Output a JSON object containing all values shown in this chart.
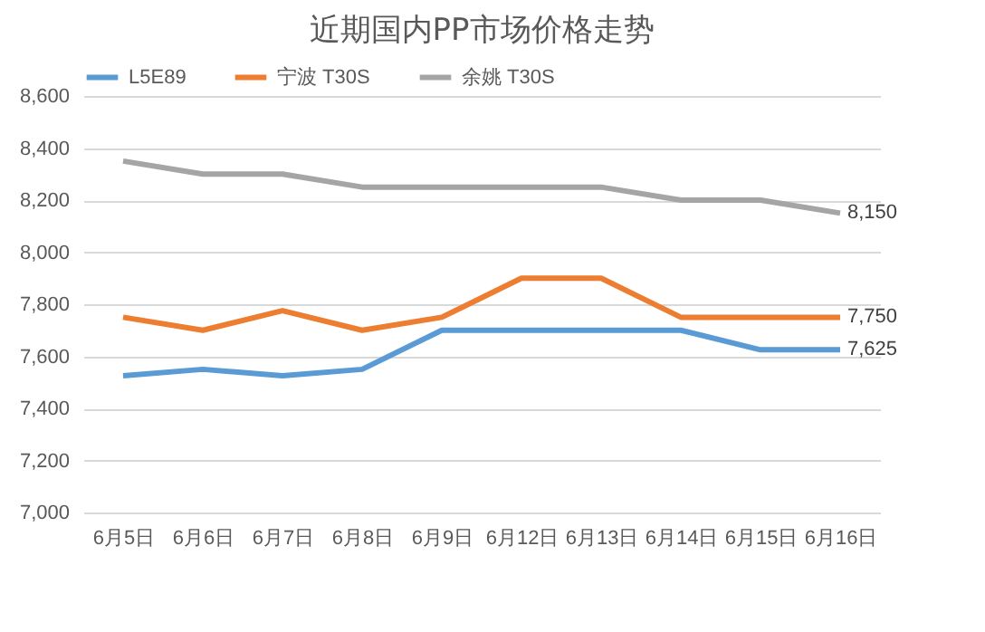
{
  "chart_data": {
    "type": "line",
    "title": "近期国内PP市场价格走势",
    "categories": [
      "6月5日",
      "6月6日",
      "6月7日",
      "6月8日",
      "6月9日",
      "6月12日",
      "6月13日",
      "6月14日",
      "6月15日",
      "6月16日"
    ],
    "series": [
      {
        "name": "L5E89",
        "color": "#5b9bd5",
        "values": [
          7525,
          7550,
          7525,
          7550,
          7700,
          7700,
          7700,
          7700,
          7625,
          7625
        ],
        "value_labels": [
          null,
          null,
          null,
          null,
          null,
          null,
          null,
          null,
          null,
          "7,625"
        ]
      },
      {
        "name": "宁波 T30S",
        "color": "#ed7d31",
        "values": [
          7750,
          7700,
          7775,
          7700,
          7750,
          7900,
          7900,
          7750,
          7750,
          7750
        ],
        "value_labels": [
          null,
          null,
          null,
          null,
          null,
          null,
          null,
          null,
          null,
          "7,750"
        ]
      },
      {
        "name": "余姚 T30S",
        "color": "#a5a5a5",
        "values": [
          8350,
          8300,
          8300,
          8250,
          8250,
          8250,
          8250,
          8200,
          8200,
          8150
        ],
        "value_labels": [
          null,
          null,
          null,
          null,
          null,
          null,
          null,
          null,
          null,
          "8,150"
        ]
      }
    ],
    "ylim": [
      7000,
      8600
    ],
    "yticks": [
      {
        "value": 7000,
        "label": "7,000"
      },
      {
        "value": 7200,
        "label": "7,200"
      },
      {
        "value": 7400,
        "label": "7,400"
      },
      {
        "value": 7600,
        "label": "7,600"
      },
      {
        "value": 7800,
        "label": "7,800"
      },
      {
        "value": 8000,
        "label": "8,000"
      },
      {
        "value": 8200,
        "label": "8,200"
      },
      {
        "value": 8400,
        "label": "8,400"
      },
      {
        "value": 8600,
        "label": "8,600"
      }
    ],
    "grid": "y",
    "legend": "top"
  }
}
